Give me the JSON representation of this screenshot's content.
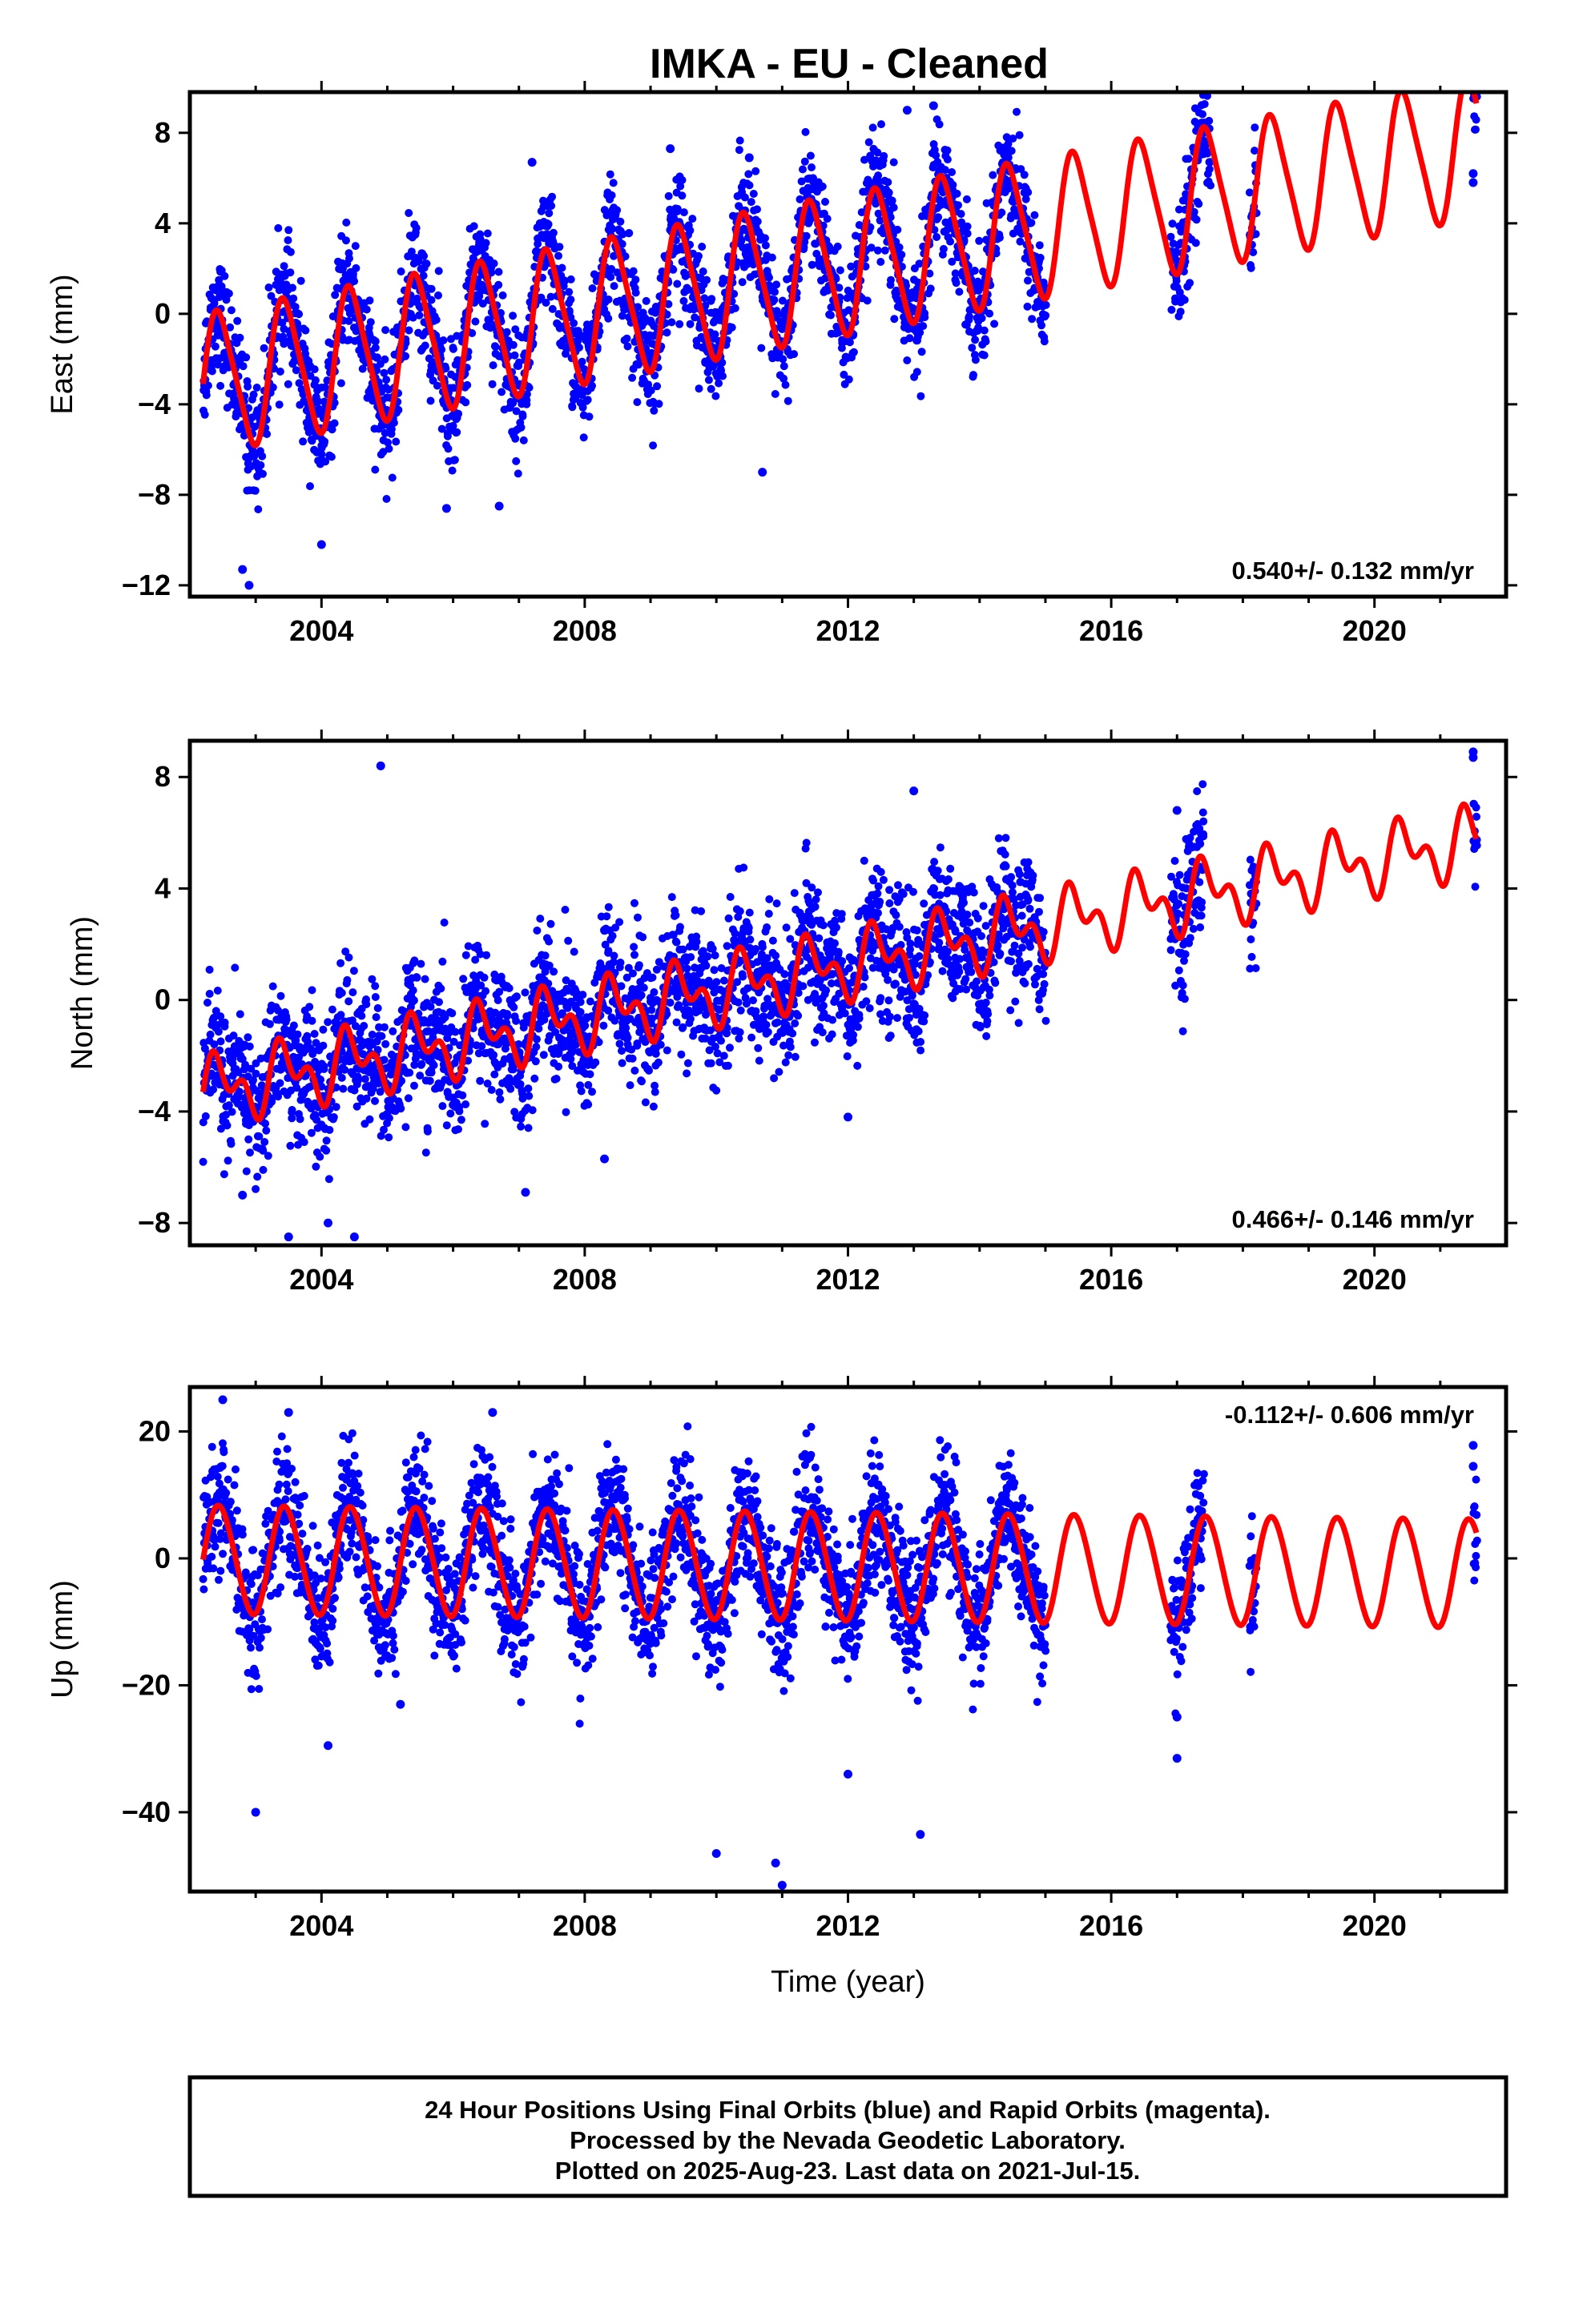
{
  "title": "IMKA  - EU - Cleaned",
  "footer": {
    "line1": "24 Hour Positions Using Final Orbits (blue) and Rapid Orbits (magenta).",
    "line2": "Processed by the Nevada Geodetic Laboratory.",
    "line3": "Plotted on 2025-Aug-23. Last data on 2021-Jul-15."
  },
  "colors": {
    "observations": "#0000ff",
    "model": "#ff0000",
    "frame": "#000000"
  },
  "chart_data": [
    {
      "type": "scatter",
      "name": "east",
      "ylabel": "East (mm)",
      "xlabel": "",
      "rate_text": "0.540+/- 0.132 mm/yr",
      "xlim": [
        2002.0,
        2022.0
      ],
      "ylim": [
        -12.5,
        9.8
      ],
      "x_ticks": [
        2004,
        2008,
        2012,
        2016,
        2020
      ],
      "y_ticks": [
        -12,
        -8,
        -4,
        0,
        4,
        8
      ],
      "model": {
        "offset": -3.1,
        "rate": 0.54,
        "amp1": 3.0,
        "phase1": 0.0,
        "amp2": 0.5,
        "phase2": 0.0,
        "ref_year": 2002.2
      },
      "observation_ranges": [
        [
          2002.2,
          2015.0
        ],
        [
          2016.9,
          2017.5
        ],
        [
          2018.1,
          2018.2
        ],
        [
          2021.5,
          2021.55
        ]
      ],
      "noise": 1.3,
      "outliers": [
        [
          2002.9,
          -12.0
        ],
        [
          2002.8,
          -11.3
        ],
        [
          2004.0,
          -10.2
        ],
        [
          2005.9,
          -8.6
        ],
        [
          2006.7,
          -8.5
        ],
        [
          2010.7,
          -7.0
        ],
        [
          2007.2,
          6.7
        ],
        [
          2009.3,
          7.3
        ],
        [
          2010.5,
          6.9
        ],
        [
          2013.3,
          9.2
        ],
        [
          2012.9,
          9.0
        ],
        [
          2021.5,
          6.2
        ],
        [
          2021.5,
          5.8
        ]
      ],
      "series": [
        {
          "values": "daily GPS positions"
        }
      ]
    },
    {
      "type": "scatter",
      "name": "north",
      "ylabel": "North (mm)",
      "xlabel": "",
      "rate_text": "0.466+/- 0.146 mm/yr",
      "xlim": [
        2002.0,
        2022.0
      ],
      "ylim": [
        -8.8,
        9.3
      ],
      "x_ticks": [
        2004,
        2008,
        2012,
        2016,
        2020
      ],
      "y_ticks": [
        -8,
        -4,
        0,
        4,
        8
      ],
      "model": {
        "offset": -3.3,
        "rate": 0.466,
        "amp1": 0.9,
        "phase1": 0.0,
        "amp2": 0.7,
        "phase2": 0.0,
        "ref_year": 2002.2
      },
      "observation_ranges": [
        [
          2002.2,
          2015.0
        ],
        [
          2016.9,
          2017.4
        ],
        [
          2018.1,
          2018.2
        ],
        [
          2021.5,
          2021.55
        ]
      ],
      "noise": 1.2,
      "outliers": [
        [
          2004.9,
          8.4
        ],
        [
          2003.5,
          -8.5
        ],
        [
          2004.1,
          -8.0
        ],
        [
          2004.5,
          -8.5
        ],
        [
          2007.1,
          -6.9
        ],
        [
          2008.3,
          -5.7
        ],
        [
          2012.0,
          -4.2
        ],
        [
          2008.3,
          2.5
        ],
        [
          2013.0,
          7.5
        ],
        [
          2021.5,
          8.9
        ],
        [
          2021.5,
          8.7
        ],
        [
          2017.0,
          6.8
        ],
        [
          2002.8,
          -7.0
        ]
      ],
      "series": [
        {
          "values": "daily GPS positions"
        }
      ]
    },
    {
      "type": "scatter",
      "name": "up",
      "ylabel": "Up (mm)",
      "xlabel": "Time (year)",
      "rate_text": "-0.112+/- 0.606 mm/yr",
      "xlim": [
        2002.0,
        2022.0
      ],
      "ylim": [
        -52.5,
        27.0
      ],
      "x_ticks": [
        2004,
        2008,
        2012,
        2016,
        2020
      ],
      "y_ticks": [
        -40,
        -20,
        0,
        20
      ],
      "model": {
        "offset": -0.2,
        "rate": -0.112,
        "amp1": 8.5,
        "phase1": 0.0,
        "amp2": 0.5,
        "phase2": 0.0,
        "ref_year": 2002.2
      },
      "observation_ranges": [
        [
          2002.2,
          2015.0
        ],
        [
          2016.9,
          2017.4
        ],
        [
          2018.1,
          2018.2
        ],
        [
          2021.5,
          2021.55
        ]
      ],
      "noise": 5.0,
      "outliers": [
        [
          2003.0,
          -40.0
        ],
        [
          2004.1,
          -29.5
        ],
        [
          2005.2,
          -23.0
        ],
        [
          2010.0,
          -46.5
        ],
        [
          2010.9,
          -48.0
        ],
        [
          2011.0,
          -51.5
        ],
        [
          2012.0,
          -34.0
        ],
        [
          2013.1,
          -43.5
        ],
        [
          2017.0,
          -31.5
        ],
        [
          2017.0,
          -25.0
        ],
        [
          2002.5,
          25.0
        ],
        [
          2003.5,
          23.0
        ],
        [
          2006.6,
          23.0
        ],
        [
          2021.5,
          17.8
        ],
        [
          2021.5,
          14.5
        ]
      ],
      "series": [
        {
          "values": "daily GPS positions"
        }
      ]
    }
  ]
}
